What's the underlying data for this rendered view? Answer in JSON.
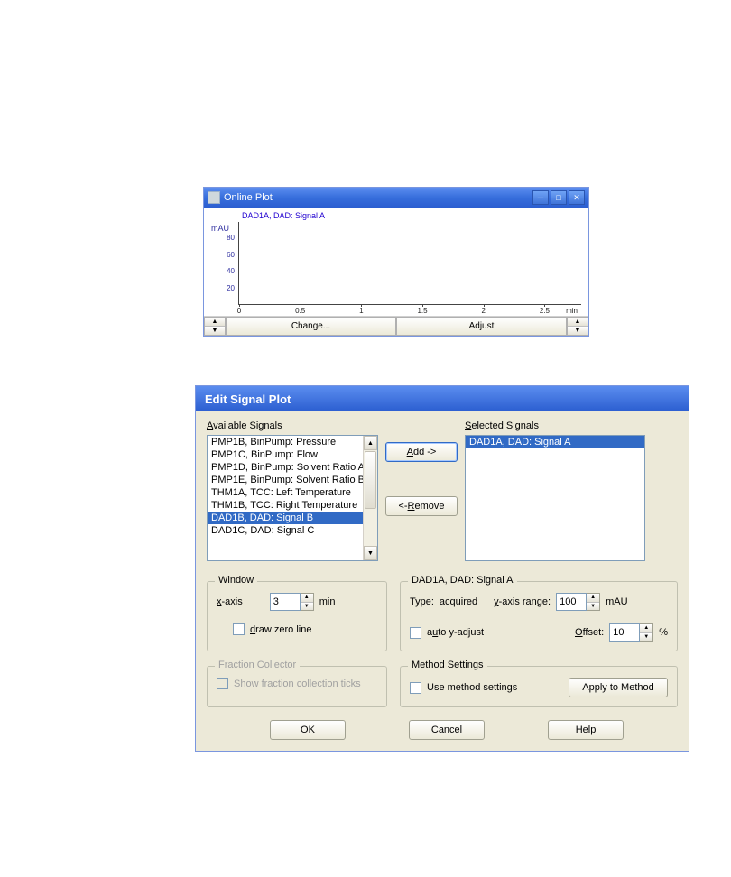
{
  "colors": {
    "titlebar_top": "#5b8def",
    "titlebar_bottom": "#2b5ed0",
    "dialog_bg": "#ece9d8",
    "listbox_border": "#7f9db9",
    "selection_bg": "#316ac5",
    "selection_fg": "#ffffff",
    "disabled_text": "#a0a0a0",
    "plot_text": "#3030a0"
  },
  "online_plot": {
    "title": "Online Plot",
    "legend": "DAD1A, DAD: Signal A",
    "yaxis_label": "mAU",
    "yticks": [
      80,
      60,
      40,
      20
    ],
    "ylim": [
      0,
      100
    ],
    "xticks": [
      0,
      0.5,
      1,
      1.5,
      2,
      2.5
    ],
    "xlim": [
      0,
      2.8
    ],
    "xunit": "min",
    "buttons": {
      "change": "Change...",
      "adjust": "Adjust"
    }
  },
  "dialog": {
    "title": "Edit Signal Plot",
    "available_label": "Available Signals",
    "selected_label": "Selected Signals",
    "available_items": [
      "PMP1B, BinPump: Pressure",
      "PMP1C, BinPump: Flow",
      "PMP1D, BinPump: Solvent Ratio A",
      "PMP1E, BinPump: Solvent Ratio B",
      "THM1A, TCC: Left Temperature",
      "THM1B, TCC: Right Temperature",
      "DAD1B, DAD: Signal B",
      "DAD1C, DAD: Signal C"
    ],
    "available_selected_index": 6,
    "selected_items": [
      "DAD1A, DAD: Signal A"
    ],
    "selected_selected_index": 0,
    "buttons": {
      "add": "Add ->",
      "remove": "<- Remove"
    },
    "window_group": {
      "title": "Window",
      "xaxis_label": "x-axis",
      "xaxis_value": "3",
      "xaxis_unit": "min",
      "draw_zero_label": "draw zero line",
      "draw_zero_checked": false
    },
    "signal_group": {
      "title": "DAD1A, DAD: Signal A",
      "type_label": "Type:",
      "type_value": "acquired",
      "yrange_label": "y-axis range:",
      "yrange_value": "100",
      "yrange_unit": "mAU",
      "auto_label": "auto y-adjust",
      "auto_checked": false,
      "offset_label": "Offset:",
      "offset_value": "10",
      "offset_unit": "%"
    },
    "fraction_group": {
      "title": "Fraction Collector",
      "show_ticks_label": "Show fraction collection ticks",
      "show_ticks_checked": false,
      "enabled": false
    },
    "method_group": {
      "title": "Method Settings",
      "use_label": "Use method settings",
      "use_checked": false,
      "apply_label": "Apply to Method"
    },
    "bottom_buttons": {
      "ok": "OK",
      "cancel": "Cancel",
      "help": "Help"
    }
  }
}
